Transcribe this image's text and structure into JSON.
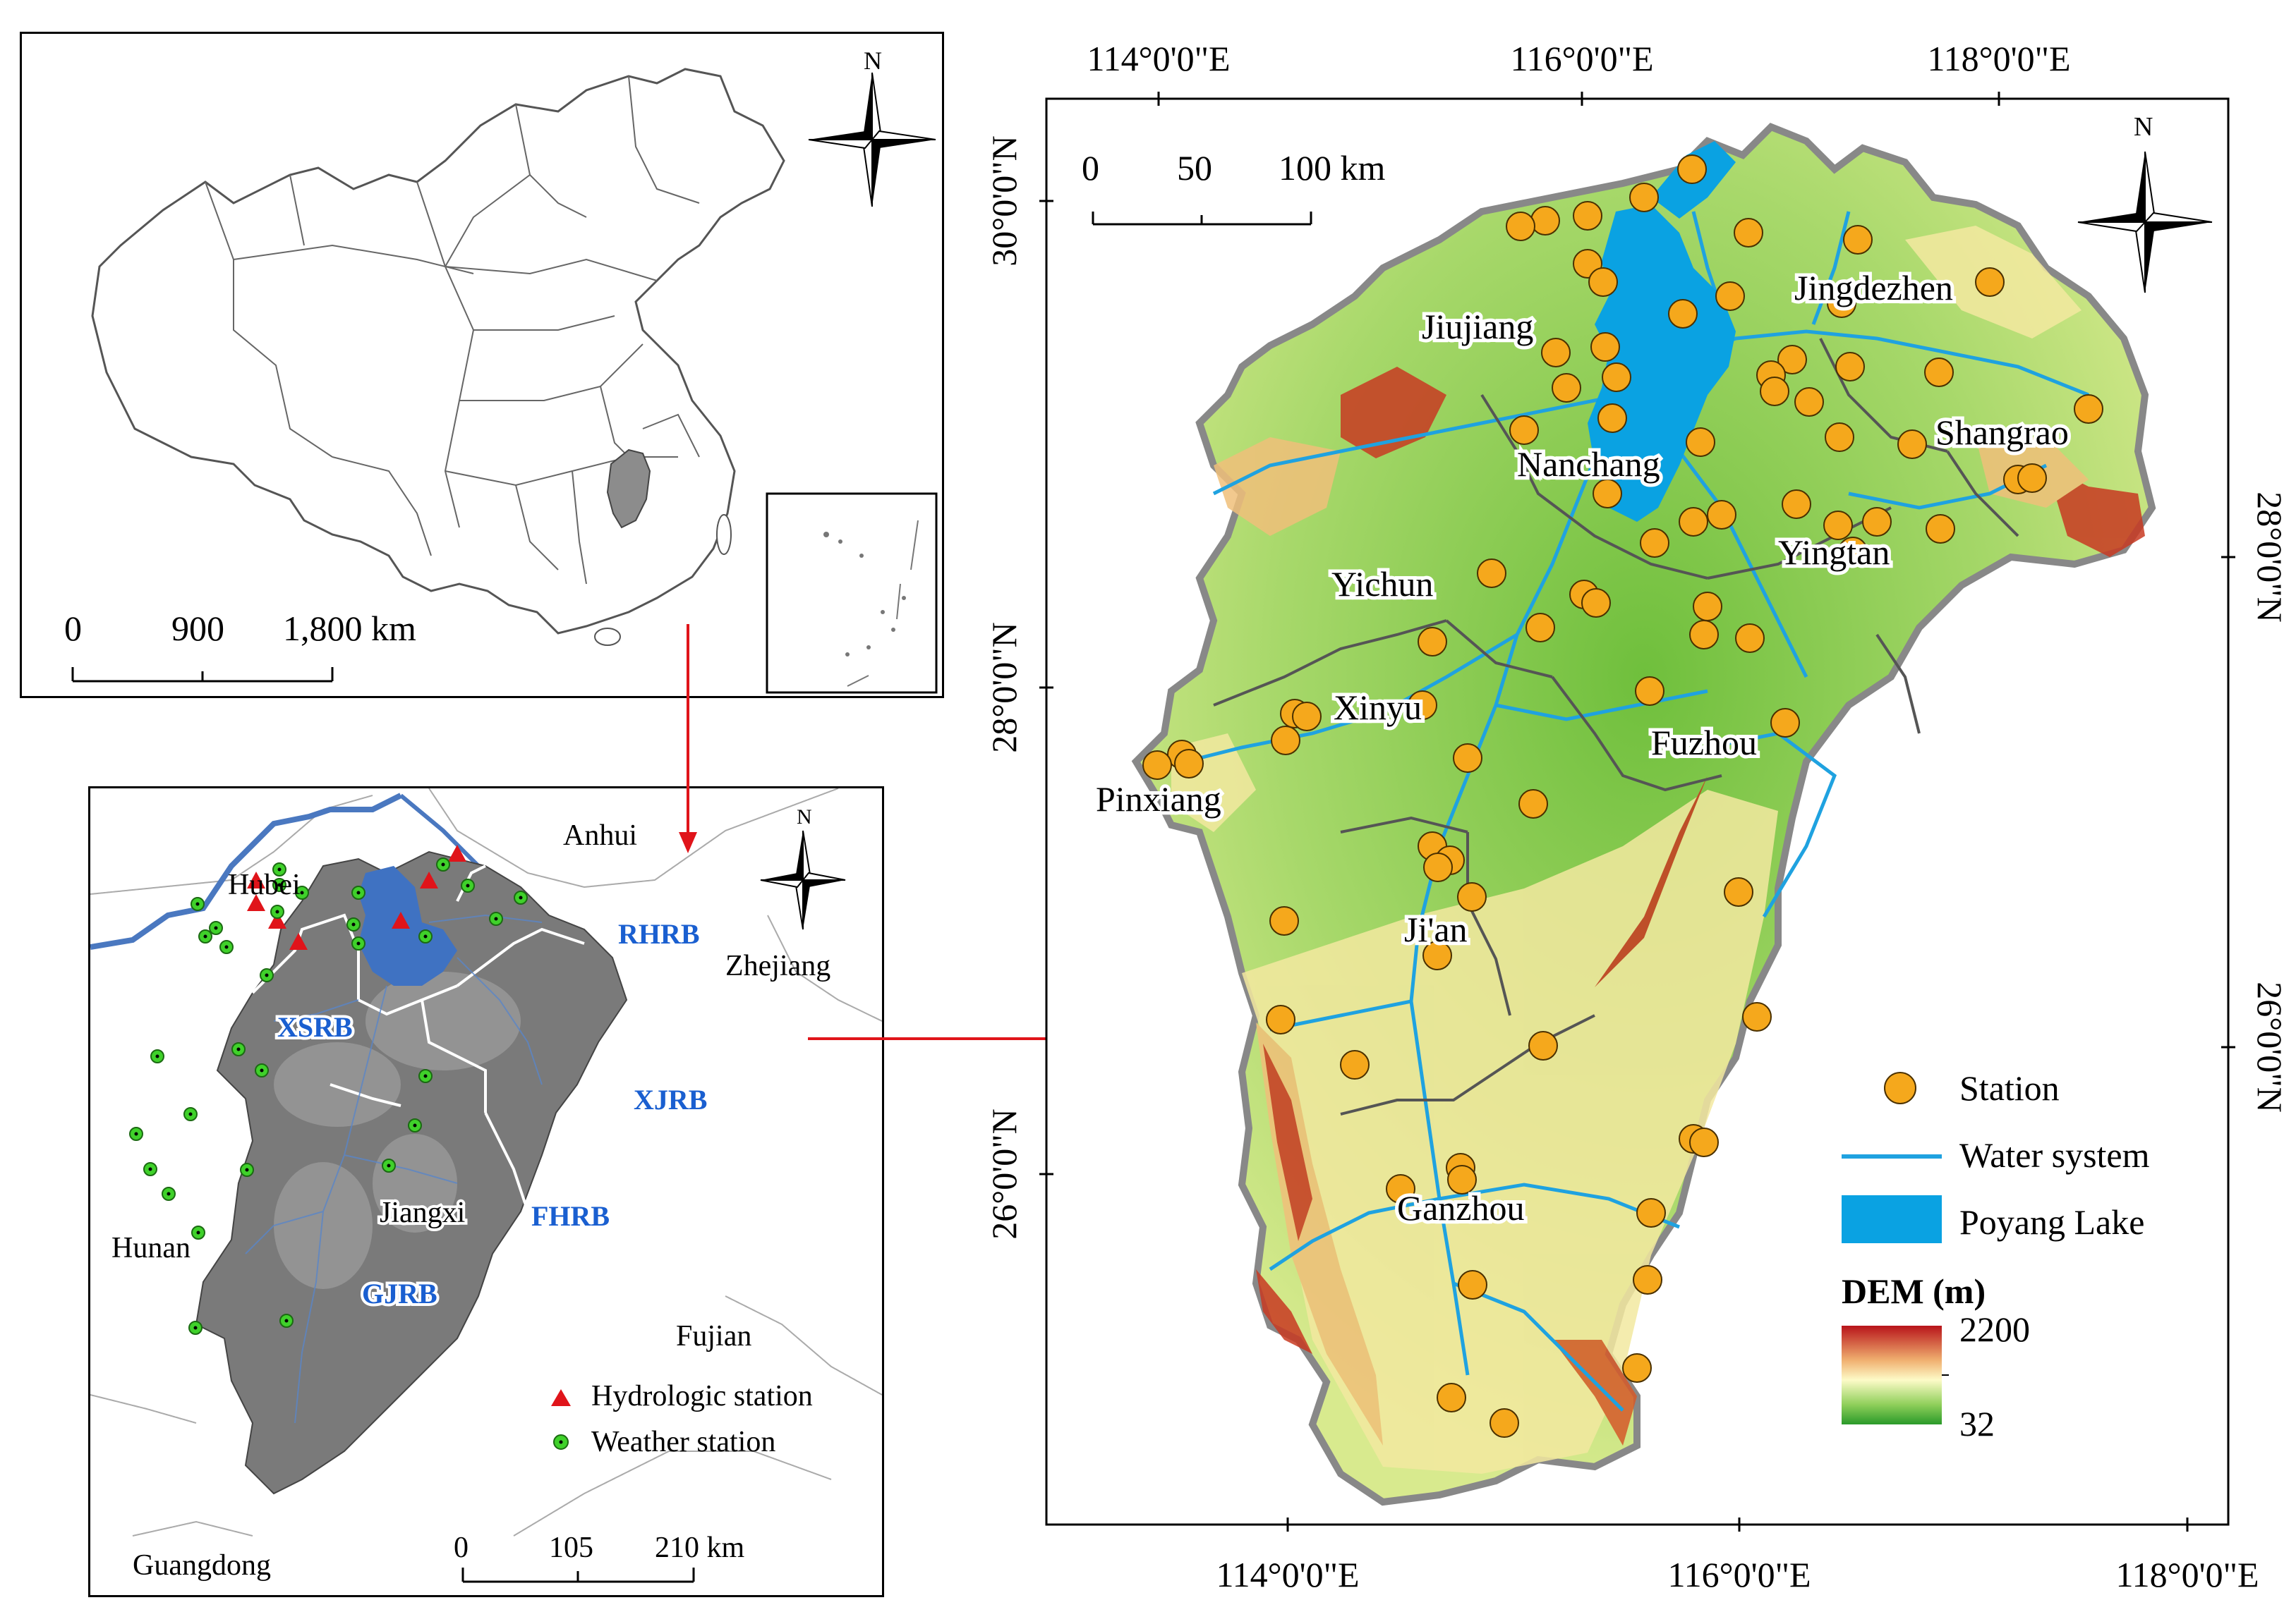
{
  "china_panel": {
    "north": "N",
    "scale": {
      "labels": [
        "0",
        "900",
        "1,800 km"
      ]
    }
  },
  "jiangxi_panel": {
    "north": "N",
    "neighbors": [
      "Anhui",
      "Hubei",
      "Zhejiang",
      "Hunan",
      "Fujian",
      "Guangdong"
    ],
    "province_label": "Jiangxi",
    "basins": [
      "RHRB",
      "XSRB",
      "XJRB",
      "FHRB",
      "GJRB"
    ],
    "legend": {
      "hydrologic": "Hydrologic station",
      "weather": "Weather station"
    },
    "scale": {
      "labels": [
        "0",
        "105",
        "210 km"
      ]
    }
  },
  "main_map": {
    "north": "N",
    "top_lon": [
      "114°0'0\"E",
      "116°0'0\"E",
      "118°0'0\"E"
    ],
    "bottom_lon": [
      "114°0'0\"E",
      "116°0'0\"E",
      "118°0'0\"E"
    ],
    "left_lat": [
      "30°0'0\"N",
      "28°0'0\"N",
      "26°0'0\"N"
    ],
    "right_lat": [
      "28°0'0\"N",
      "26°0'0\"N"
    ],
    "scale": {
      "labels": [
        "0",
        "50",
        "100 km"
      ]
    },
    "cities": [
      "Jiujiang",
      "Jingdezhen",
      "Nanchang",
      "Shangrao",
      "Yingtan",
      "Yichun",
      "Xinyu",
      "Pinxiang",
      "Fuzhou",
      "Ji'an",
      "Ganzhou"
    ],
    "legend": {
      "station": "Station",
      "water": "Water system",
      "lake": "Poyang Lake",
      "dem_title": "DEM (m)",
      "dem_max": "2200",
      "dem_min": "32"
    }
  },
  "colors": {
    "station_fill": "#f5a81c",
    "water": "#1fa2e0",
    "lake": "#0aa2e2",
    "hydro_triangle": "#e0141a",
    "weather_dot": "#3fd12a",
    "arrow": "#e0141a",
    "basin_label": "#1a5fd0",
    "dem_high": "#b8141a",
    "dem_mid": "#fdfbc8",
    "dem_low": "#2a9a2a"
  }
}
